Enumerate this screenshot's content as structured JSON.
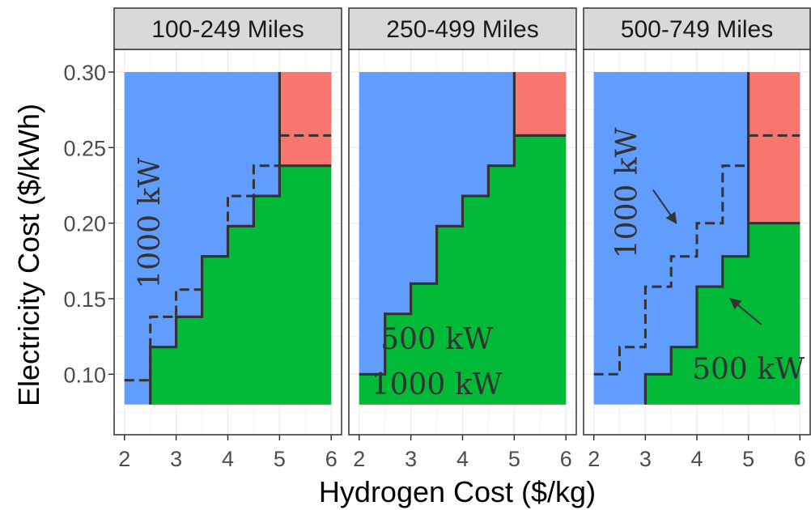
{
  "chart_data": {
    "type": "area",
    "xlabel": "Hydrogen Cost ($/kg)",
    "ylabel": "Electricity Cost ($/kWh)",
    "xlim": [
      1.8,
      6.2
    ],
    "ylim": [
      0.06,
      0.315
    ],
    "x_ticks": [
      2,
      3,
      4,
      5,
      6
    ],
    "y_ticks": [
      0.1,
      0.15,
      0.2,
      0.25,
      0.3
    ],
    "y_tick_labels": [
      "0.10",
      "0.15",
      "0.20",
      "0.25",
      "0.30"
    ],
    "grid": true,
    "legend": "none",
    "fill_xrange": [
      2,
      6
    ],
    "fill_yrange": [
      0.08,
      0.3
    ],
    "colors": {
      "blue": "#619CFF",
      "red": "#F8766D",
      "green": "#00BA38",
      "line": "#333333"
    },
    "panels": [
      {
        "facet": "100-249 Miles",
        "solid_boundary": [
          [
            2.5,
            0.08
          ],
          [
            2.5,
            0.118
          ],
          [
            3.0,
            0.118
          ],
          [
            3.0,
            0.138
          ],
          [
            3.5,
            0.138
          ],
          [
            3.5,
            0.178
          ],
          [
            4.0,
            0.178
          ],
          [
            4.0,
            0.198
          ],
          [
            4.5,
            0.198
          ],
          [
            4.5,
            0.218
          ],
          [
            5.0,
            0.218
          ],
          [
            5.0,
            0.3
          ]
        ],
        "red_green_boundary": 0.238,
        "dashed_boundary": [
          [
            2.0,
            0.096
          ],
          [
            2.5,
            0.096
          ],
          [
            2.5,
            0.138
          ],
          [
            3.0,
            0.138
          ],
          [
            3.0,
            0.156
          ],
          [
            3.5,
            0.156
          ],
          [
            3.5,
            0.178
          ],
          [
            4.0,
            0.178
          ],
          [
            4.0,
            0.218
          ],
          [
            4.5,
            0.218
          ],
          [
            4.5,
            0.238
          ],
          [
            5.0,
            0.238
          ]
        ],
        "dashed_red_segment": 0.258,
        "annotations": [
          {
            "text": "1000 kW",
            "x": 2.5,
            "y": 0.2,
            "rotate": -90
          }
        ],
        "arrows": []
      },
      {
        "facet": "250-499 Miles",
        "solid_boundary": [
          [
            2.0,
            0.1
          ],
          [
            2.5,
            0.1
          ],
          [
            2.5,
            0.14
          ],
          [
            3.0,
            0.14
          ],
          [
            3.0,
            0.16
          ],
          [
            3.5,
            0.16
          ],
          [
            3.5,
            0.198
          ],
          [
            4.0,
            0.198
          ],
          [
            4.0,
            0.218
          ],
          [
            4.5,
            0.218
          ],
          [
            4.5,
            0.238
          ],
          [
            5.0,
            0.238
          ],
          [
            5.0,
            0.3
          ]
        ],
        "red_green_boundary": 0.258,
        "dashed_boundary": [],
        "annotations": [
          {
            "text": "500 kW",
            "x": 3.5,
            "y": 0.123,
            "rotate": 0
          },
          {
            "text": "1000 kW",
            "x": 3.5,
            "y": 0.093,
            "rotate": 0
          }
        ],
        "arrows": []
      },
      {
        "facet": "500-749 Miles",
        "solid_boundary": [
          [
            3.0,
            0.08
          ],
          [
            3.0,
            0.1
          ],
          [
            3.5,
            0.1
          ],
          [
            3.5,
            0.118
          ],
          [
            4.0,
            0.118
          ],
          [
            4.0,
            0.158
          ],
          [
            4.5,
            0.158
          ],
          [
            4.5,
            0.178
          ],
          [
            5.0,
            0.178
          ],
          [
            5.0,
            0.3
          ]
        ],
        "red_green_boundary": 0.2,
        "dashed_boundary": [
          [
            2.0,
            0.1
          ],
          [
            2.5,
            0.1
          ],
          [
            2.5,
            0.118
          ],
          [
            3.0,
            0.118
          ],
          [
            3.0,
            0.158
          ],
          [
            3.5,
            0.158
          ],
          [
            3.5,
            0.178
          ],
          [
            4.0,
            0.178
          ],
          [
            4.0,
            0.2
          ],
          [
            4.5,
            0.2
          ],
          [
            4.5,
            0.238
          ],
          [
            5.0,
            0.238
          ]
        ],
        "dashed_red_segment": 0.258,
        "annotations": [
          {
            "text": "1000 kW",
            "x": 2.65,
            "y": 0.22,
            "rotate": -90
          },
          {
            "text": "500 kW",
            "x": 5.0,
            "y": 0.103,
            "rotate": 0
          }
        ],
        "arrows": [
          {
            "from": [
              3.15,
              0.222
            ],
            "to": [
              3.6,
              0.2
            ]
          },
          {
            "from": [
              5.25,
              0.133
            ],
            "to": [
              4.65,
              0.15
            ]
          }
        ]
      }
    ]
  }
}
